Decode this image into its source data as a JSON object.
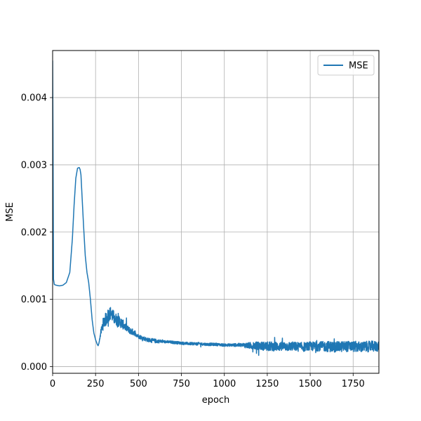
{
  "chart_data": {
    "type": "line",
    "title": "",
    "xlabel": "epoch",
    "ylabel": "MSE",
    "xlim": [
      0,
      1900
    ],
    "ylim": [
      -0.0001,
      0.0047
    ],
    "grid": true,
    "legend_position": "top-right",
    "x_ticks": [
      0,
      250,
      500,
      750,
      1000,
      1250,
      1500,
      1750
    ],
    "x_tick_labels": [
      "0",
      "250",
      "500",
      "750",
      "1000",
      "1250",
      "1500",
      "1750"
    ],
    "y_ticks": [
      0.0,
      0.001,
      0.002,
      0.003,
      0.004
    ],
    "y_tick_labels": [
      "0.000",
      "0.001",
      "0.002",
      "0.003",
      "0.004"
    ],
    "series": [
      {
        "name": "MSE",
        "color": "#1f77b4",
        "x": [
          0,
          2,
          5,
          10,
          20,
          40,
          60,
          80,
          100,
          115,
          125,
          135,
          145,
          155,
          160,
          165,
          170,
          180,
          190,
          200,
          210,
          220,
          230,
          240,
          250,
          260,
          265,
          270,
          280,
          290,
          300,
          310,
          320,
          330,
          340,
          350,
          360,
          380,
          400,
          420,
          440,
          460,
          480,
          500,
          550,
          600,
          650,
          700,
          750,
          800,
          850,
          900,
          950,
          1000,
          1050,
          1100,
          1150,
          1200,
          1250,
          1300,
          1350,
          1400,
          1450,
          1500,
          1550,
          1600,
          1650,
          1700,
          1750,
          1800,
          1850,
          1900
        ],
        "y": [
          0.00455,
          0.0035,
          0.0013,
          0.00122,
          0.00121,
          0.0012,
          0.00121,
          0.00125,
          0.0014,
          0.0019,
          0.0024,
          0.0028,
          0.00295,
          0.00296,
          0.00293,
          0.00285,
          0.0026,
          0.0021,
          0.00165,
          0.0014,
          0.00125,
          0.001,
          0.0007,
          0.0005,
          0.0004,
          0.00033,
          0.00031,
          0.00035,
          0.0005,
          0.0006,
          0.00068,
          0.0007,
          0.00075,
          0.00078,
          0.0008,
          0.00075,
          0.00072,
          0.00068,
          0.00065,
          0.0006,
          0.00055,
          0.00052,
          0.0005,
          0.00045,
          0.0004,
          0.00038,
          0.00037,
          0.00036,
          0.00035,
          0.00034,
          0.00034,
          0.00033,
          0.00033,
          0.00032,
          0.00032,
          0.00032,
          0.00031,
          0.00031,
          0.0003,
          0.0003,
          0.0003,
          0.0003,
          0.00029,
          0.0003,
          0.0003,
          0.0003,
          0.00029,
          0.0003,
          0.0003,
          0.00029,
          0.0003,
          0.0003
        ],
        "noise_band": [
          0,
          0,
          0,
          0,
          0,
          0,
          0,
          0,
          0,
          0,
          0,
          0,
          0,
          0,
          0,
          0,
          0,
          0,
          0,
          0,
          0,
          0,
          0,
          0,
          0,
          0,
          0,
          0,
          4e-05,
          8e-05,
          0.0001,
          0.0001,
          0.0001,
          0.0001,
          0.0001,
          0.0001,
          0.0001,
          8e-05,
          8e-05,
          6e-05,
          5e-05,
          5e-05,
          4e-05,
          3e-05,
          3e-05,
          3e-05,
          2e-05,
          2e-05,
          2e-05,
          2e-05,
          2e-05,
          2e-05,
          2e-05,
          2e-05,
          2e-05,
          3e-05,
          5e-05,
          6e-05,
          7e-05,
          7e-05,
          7e-05,
          7e-05,
          7e-05,
          7e-05,
          7e-05,
          8e-05,
          8e-05,
          8e-05,
          8e-05,
          8e-05,
          8e-05,
          8e-05
        ]
      }
    ]
  }
}
